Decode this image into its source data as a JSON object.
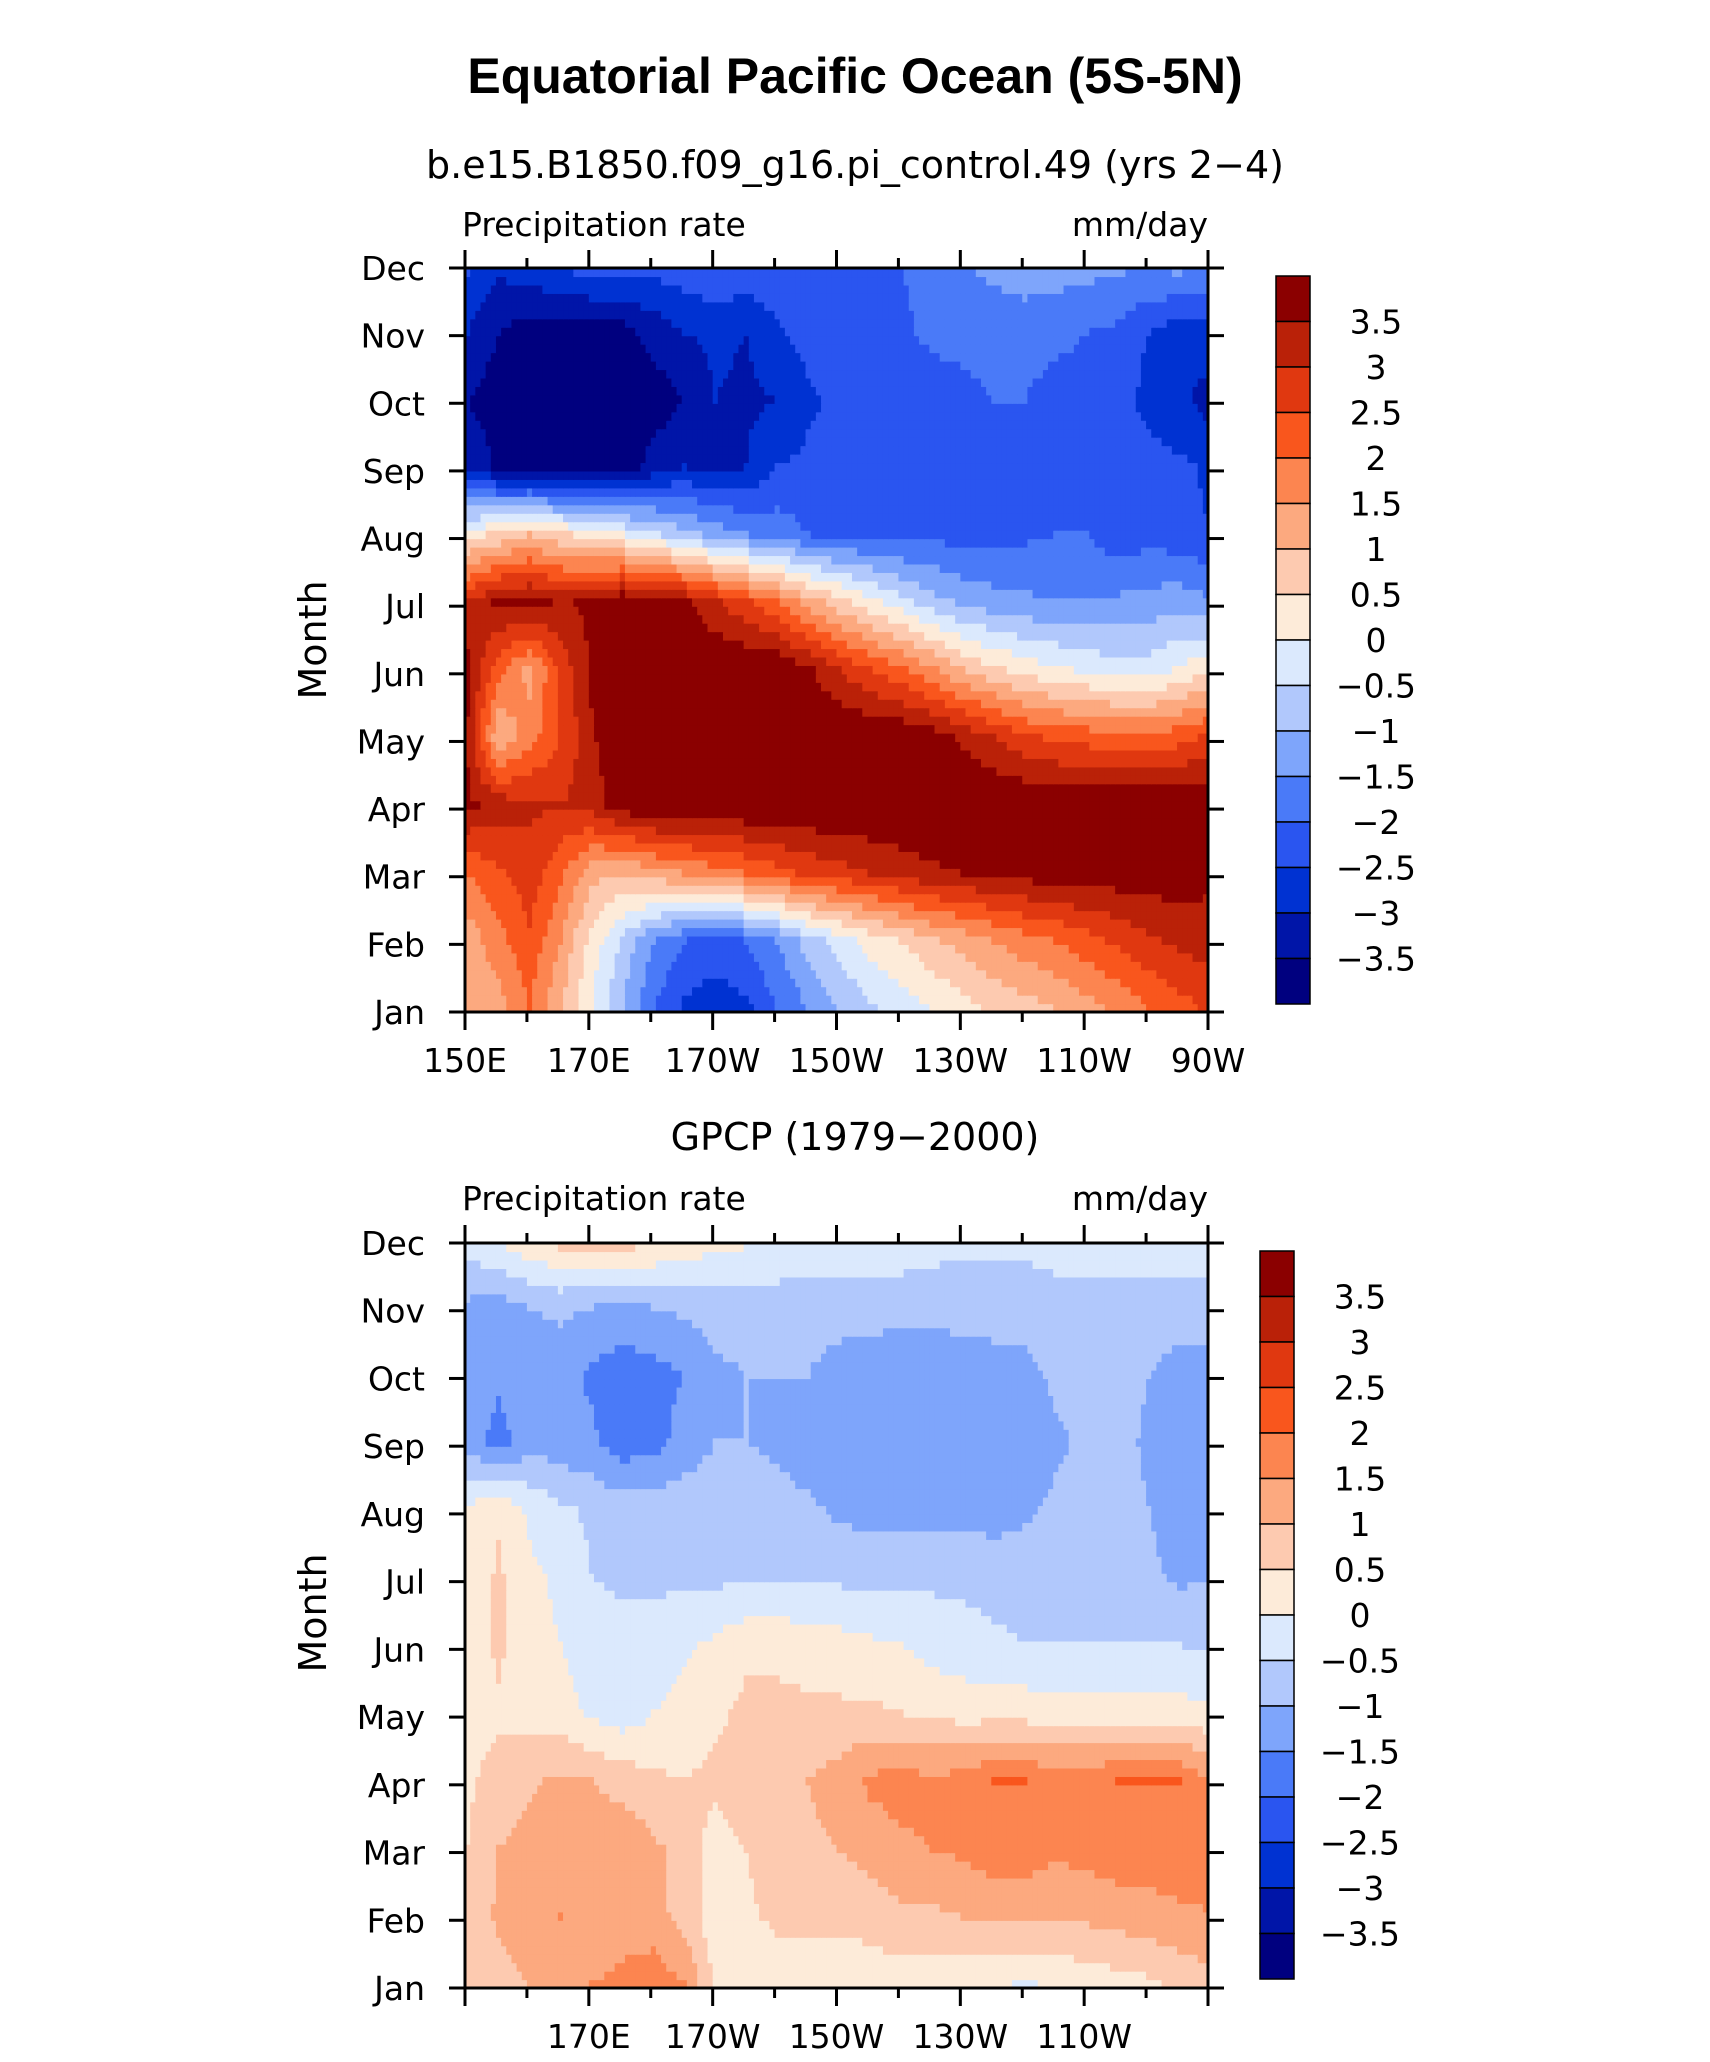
{
  "title": "Equatorial Pacific Ocean (5S-5N)",
  "palette": [
    "#00007f",
    "#0015a8",
    "#0032d2",
    "#2a55f0",
    "#4a7af8",
    "#7ea5fb",
    "#b1c8fc",
    "#dbe9fd",
    "#fdebd9",
    "#fdcab0",
    "#fca97f",
    "#fc8550",
    "#f9561d",
    "#e03810",
    "#ba2108",
    "#8b0000"
  ],
  "chart_data": [
    {
      "type": "heatmap",
      "title": "b.e15.B1850.f09_g16.pi_control.49 (yrs 2−4)",
      "left_label": "Precipitation rate",
      "right_label": "mm/day",
      "ylabel": "Month",
      "xlim": [
        150,
        270
      ],
      "x_tick_labels": [
        "150E",
        "170E",
        "170W",
        "150W",
        "130W",
        "110W",
        "90W"
      ],
      "x_tick_values": [
        150,
        170,
        190,
        210,
        230,
        250,
        270
      ],
      "y_tick_labels": [
        "Jan",
        "Feb",
        "Mar",
        "Apr",
        "May",
        "Jun",
        "Jul",
        "Aug",
        "Sep",
        "Oct",
        "Nov",
        "Dec"
      ],
      "levels": [
        "3.5",
        "3",
        "2.5",
        "2",
        "1.5",
        "1",
        "0.5",
        "0",
        "−0.5",
        "−1",
        "−1.5",
        "−2",
        "−2.5",
        "−3",
        "−3.5"
      ],
      "x": [
        150,
        155,
        160,
        165,
        170,
        175,
        180,
        185,
        190,
        195,
        200,
        205,
        210,
        215,
        220,
        225,
        230,
        235,
        240,
        245,
        250,
        255,
        260,
        265,
        270
      ],
      "z": [
        [
          1.0,
          1.3,
          2.0,
          1.0,
          0.0,
          -1.0,
          -2.0,
          -2.6,
          -2.8,
          -2.6,
          -2.0,
          -1.5,
          -1.0,
          -0.6,
          -0.3,
          0.0,
          0.3,
          0.6,
          0.8,
          1.0,
          1.3,
          1.6,
          2.0,
          2.3,
          2.6
        ],
        [
          1.2,
          1.8,
          2.4,
          1.5,
          0.3,
          -0.6,
          -1.5,
          -2.0,
          -2.2,
          -2.0,
          -1.5,
          -0.8,
          -0.3,
          0.2,
          0.5,
          0.9,
          1.2,
          1.5,
          1.8,
          2.0,
          2.3,
          2.6,
          2.9,
          3.1,
          3.3
        ],
        [
          2.0,
          2.4,
          2.8,
          2.1,
          1.2,
          1.0,
          1.3,
          1.5,
          1.8,
          2.0,
          2.3,
          2.6,
          2.8,
          3.0,
          3.2,
          3.4,
          3.5,
          3.6,
          3.7,
          3.8,
          3.8,
          3.8,
          3.8,
          3.8,
          3.6
        ],
        [
          3.6,
          3.3,
          3.1,
          3.0,
          3.2,
          3.8,
          4.0,
          4.0,
          4.0,
          4.0,
          4.0,
          4.0,
          4.0,
          4.0,
          4.0,
          4.0,
          4.0,
          4.0,
          4.0,
          4.0,
          4.0,
          4.0,
          4.0,
          4.0,
          4.0
        ],
        [
          3.4,
          1.0,
          1.8,
          2.5,
          3.4,
          4.0,
          4.0,
          4.0,
          4.0,
          4.0,
          4.0,
          4.0,
          4.0,
          4.0,
          4.0,
          3.8,
          3.4,
          3.0,
          2.6,
          2.4,
          2.3,
          2.2,
          2.2,
          2.3,
          2.6
        ],
        [
          3.7,
          2.2,
          1.3,
          2.6,
          3.6,
          4.0,
          4.0,
          4.0,
          4.0,
          4.0,
          4.0,
          3.6,
          3.0,
          2.5,
          2.1,
          1.6,
          1.0,
          0.6,
          0.3,
          0.1,
          -0.1,
          -0.3,
          -0.3,
          0.1,
          0.4
        ],
        [
          3.0,
          3.6,
          3.7,
          3.4,
          3.6,
          4.0,
          4.0,
          3.6,
          3.1,
          2.6,
          2.0,
          1.3,
          0.7,
          0.2,
          -0.3,
          -0.8,
          -1.1,
          -1.3,
          -1.4,
          -1.5,
          -1.5,
          -1.4,
          -1.3,
          -1.2,
          -1.4
        ],
        [
          0.3,
          0.6,
          1.0,
          0.6,
          0.3,
          0.0,
          -0.4,
          -0.8,
          -1.2,
          -1.5,
          -1.7,
          -2.0,
          -2.1,
          -2.2,
          -2.2,
          -2.1,
          -2.2,
          -2.2,
          -2.1,
          -2.0,
          -2.0,
          -2.3,
          -2.2,
          -2.3,
          -2.5
        ],
        [
          -3.1,
          -3.6,
          -3.8,
          -3.8,
          -3.8,
          -3.8,
          -3.3,
          -3.0,
          -3.1,
          -3.0,
          -2.5,
          -2.4,
          -2.3,
          -2.2,
          -2.2,
          -2.1,
          -2.1,
          -2.3,
          -2.2,
          -2.1,
          -2.2,
          -2.3,
          -2.3,
          -2.4,
          -2.6
        ],
        [
          -3.5,
          -3.8,
          -3.8,
          -3.8,
          -3.8,
          -3.8,
          -3.8,
          -3.5,
          -3.0,
          -3.1,
          -3.0,
          -2.6,
          -2.4,
          -2.3,
          -2.3,
          -2.2,
          -2.2,
          -2.0,
          -2.0,
          -2.3,
          -2.3,
          -2.2,
          -2.7,
          -2.9,
          -3.2
        ],
        [
          -3.0,
          -3.5,
          -3.8,
          -3.8,
          -3.8,
          -3.7,
          -3.3,
          -3.0,
          -2.9,
          -3.0,
          -2.6,
          -2.3,
          -2.2,
          -2.1,
          -2.1,
          -1.9,
          -1.8,
          -1.7,
          -1.7,
          -1.8,
          -2.0,
          -2.1,
          -2.5,
          -2.8,
          -2.7
        ],
        [
          -2.4,
          -2.9,
          -2.6,
          -2.4,
          -2.2,
          -2.2,
          -2.3,
          -2.2,
          -2.0,
          -2.1,
          -2.1,
          -2.0,
          -2.1,
          -2.0,
          -2.0,
          -1.8,
          -1.5,
          -1.4,
          -1.3,
          -1.3,
          -1.3,
          -1.4,
          -1.4,
          -1.3,
          -1.5
        ]
      ]
    },
    {
      "type": "heatmap",
      "title": "GPCP (1979−2000)",
      "left_label": "Precipitation rate",
      "right_label": "mm/day",
      "ylabel": "Month",
      "xlim": [
        150,
        270
      ],
      "x_tick_labels": [
        "170E",
        "170W",
        "150W",
        "130W",
        "110W"
      ],
      "x_tick_values": [
        170,
        190,
        210,
        230,
        250
      ],
      "y_tick_labels": [
        "Jan",
        "Feb",
        "Mar",
        "Apr",
        "May",
        "Jun",
        "Jul",
        "Aug",
        "Sep",
        "Oct",
        "Nov",
        "Dec"
      ],
      "levels": [
        "3.5",
        "3",
        "2.5",
        "2",
        "1.5",
        "1",
        "0.5",
        "0",
        "−0.5",
        "−1",
        "−1.5",
        "−2",
        "−2.5",
        "−3",
        "−3.5"
      ],
      "x": [
        150,
        155,
        160,
        165,
        170,
        175,
        180,
        185,
        190,
        195,
        200,
        205,
        210,
        215,
        220,
        225,
        230,
        235,
        240,
        245,
        250,
        255,
        260,
        265,
        270
      ],
      "z": [
        [
          0.5,
          0.8,
          1.0,
          1.3,
          1.5,
          1.6,
          1.8,
          1.5,
          0.4,
          0.3,
          0.2,
          0.2,
          0.2,
          0.2,
          0.2,
          0.1,
          0.1,
          0.1,
          -0.1,
          0.1,
          0.2,
          0.3,
          0.4,
          0.6,
          0.8
        ],
        [
          0.6,
          1.1,
          1.3,
          1.5,
          1.0,
          1.3,
          1.2,
          0.8,
          0.2,
          0.4,
          0.6,
          0.6,
          0.6,
          0.7,
          0.9,
          0.9,
          1.0,
          1.1,
          1.1,
          1.0,
          1.1,
          1.2,
          1.3,
          1.4,
          1.5
        ],
        [
          0.5,
          1.0,
          1.2,
          1.4,
          1.2,
          1.4,
          1.1,
          0.8,
          0.3,
          0.5,
          0.8,
          0.9,
          1.0,
          1.2,
          1.4,
          1.5,
          1.6,
          1.8,
          1.8,
          1.6,
          1.7,
          1.8,
          1.8,
          1.8,
          1.6
        ],
        [
          0.4,
          0.7,
          0.9,
          1.1,
          1.0,
          0.8,
          0.6,
          0.5,
          0.6,
          0.8,
          0.9,
          1.0,
          1.2,
          1.6,
          1.7,
          1.6,
          1.7,
          2.0,
          2.0,
          1.8,
          1.8,
          2.0,
          2.0,
          2.0,
          1.5
        ],
        [
          0.3,
          0.4,
          0.3,
          0.2,
          -0.1,
          -0.3,
          0.0,
          0.2,
          0.4,
          0.6,
          0.6,
          0.6,
          0.6,
          0.6,
          0.5,
          0.4,
          0.3,
          0.3,
          0.3,
          0.2,
          0.2,
          0.2,
          0.2,
          0.2,
          0.1
        ],
        [
          0.2,
          0.6,
          0.2,
          0.0,
          -0.2,
          -0.3,
          -0.3,
          -0.1,
          0.1,
          0.4,
          0.4,
          0.3,
          0.2,
          0.1,
          0.0,
          -0.2,
          -0.3,
          -0.4,
          -0.5,
          -0.5,
          -0.5,
          -0.5,
          -0.5,
          -0.5,
          -0.6
        ],
        [
          0.1,
          0.6,
          0.1,
          -0.1,
          -0.5,
          -0.6,
          -0.6,
          -0.6,
          -0.6,
          -0.6,
          -0.6,
          -0.6,
          -0.6,
          -0.6,
          -0.6,
          -0.6,
          -0.6,
          -0.7,
          -0.7,
          -0.7,
          -0.7,
          -0.8,
          -0.9,
          -1.1,
          -1.0
        ],
        [
          0.1,
          0.4,
          -0.1,
          -0.4,
          -0.6,
          -0.7,
          -0.7,
          -0.7,
          -0.7,
          -0.7,
          -0.8,
          -0.9,
          -1.1,
          -1.2,
          -1.2,
          -1.2,
          -1.2,
          -1.2,
          -1.1,
          -0.9,
          -0.8,
          -0.8,
          -1.0,
          -1.2,
          -1.1
        ],
        [
          -1.2,
          -1.7,
          -1.2,
          -1.3,
          -1.4,
          -1.8,
          -1.7,
          -1.3,
          -1.0,
          -1.0,
          -1.1,
          -1.3,
          -1.4,
          -1.4,
          -1.4,
          -1.4,
          -1.4,
          -1.3,
          -1.3,
          -1.1,
          -0.9,
          -0.8,
          -1.1,
          -1.3,
          -1.3
        ],
        [
          -1.2,
          -1.4,
          -1.3,
          -1.3,
          -1.6,
          -1.8,
          -1.7,
          -1.5,
          -1.1,
          -1.0,
          -1.0,
          -1.0,
          -1.2,
          -1.3,
          -1.4,
          -1.4,
          -1.3,
          -1.3,
          -1.2,
          -0.9,
          -0.8,
          -0.8,
          -1.0,
          -1.3,
          -1.3
        ],
        [
          -1.1,
          -1.2,
          -1.0,
          -0.9,
          -1.0,
          -1.1,
          -1.0,
          -0.9,
          -0.8,
          -0.8,
          -0.8,
          -0.8,
          -0.8,
          -0.8,
          -0.8,
          -0.8,
          -0.8,
          -0.7,
          -0.7,
          -0.6,
          -0.6,
          -0.6,
          -0.6,
          -0.6,
          -0.6
        ],
        [
          -0.3,
          0.1,
          0.4,
          0.7,
          0.9,
          0.8,
          0.6,
          0.4,
          0.2,
          0.1,
          0.0,
          -0.1,
          -0.2,
          -0.2,
          -0.2,
          -0.3,
          -0.4,
          -0.4,
          -0.4,
          -0.4,
          -0.4,
          -0.4,
          -0.4,
          -0.4,
          -0.4
        ]
      ]
    }
  ]
}
